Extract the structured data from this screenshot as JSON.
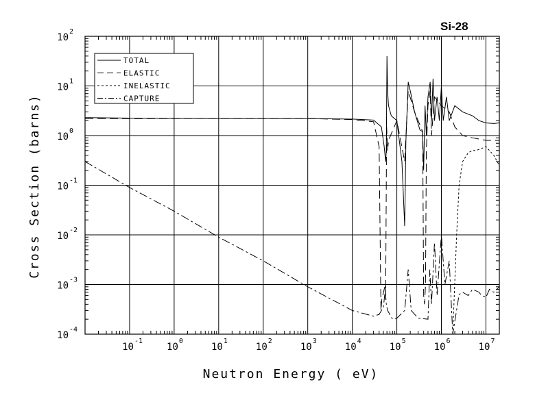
{
  "chart_data": {
    "type": "line",
    "title": "Si-28",
    "xlabel": "Neutron Energy ( eV)",
    "ylabel": "Cross Section (barns)",
    "x_scale": "log",
    "y_scale": "log",
    "xlim": [
      0.01,
      20000000
    ],
    "ylim": [
      0.0001,
      100
    ],
    "grid": true,
    "legend_position": "top-left",
    "x_ticks": [
      {
        "base": "10",
        "exp": "-1",
        "value": 0.1
      },
      {
        "base": "10",
        "exp": "0",
        "value": 1
      },
      {
        "base": "10",
        "exp": "1",
        "value": 10
      },
      {
        "base": "10",
        "exp": "2",
        "value": 100
      },
      {
        "base": "10",
        "exp": "3",
        "value": 1000
      },
      {
        "base": "10",
        "exp": "4",
        "value": 10000
      },
      {
        "base": "10",
        "exp": "5",
        "value": 100000
      },
      {
        "base": "10",
        "exp": "6",
        "value": 1000000
      },
      {
        "base": "10",
        "exp": "7",
        "value": 10000000
      }
    ],
    "y_ticks": [
      {
        "base": "10",
        "exp": "2",
        "value": 100
      },
      {
        "base": "10",
        "exp": "1",
        "value": 10
      },
      {
        "base": "10",
        "exp": "0",
        "value": 1
      },
      {
        "base": "10",
        "exp": "-1",
        "value": 0.1
      },
      {
        "base": "10",
        "exp": "-2",
        "value": 0.01
      },
      {
        "base": "10",
        "exp": "-3",
        "value": 0.001
      },
      {
        "base": "10",
        "exp": "-4",
        "value": 0.0001
      }
    ],
    "series": [
      {
        "name": "TOTAL",
        "dash": "none",
        "points": [
          [
            0.01,
            2.3
          ],
          [
            0.1,
            2.25
          ],
          [
            1,
            2.22
          ],
          [
            10,
            2.2
          ],
          [
            100,
            2.2
          ],
          [
            1000,
            2.2
          ],
          [
            10000,
            2.15
          ],
          [
            30000,
            2.05
          ],
          [
            45000,
            1.5
          ],
          [
            52000,
            0.6
          ],
          [
            56000,
            0.3
          ],
          [
            58000,
            0.5
          ],
          [
            60000,
            40
          ],
          [
            62000,
            8
          ],
          [
            65000,
            4
          ],
          [
            75000,
            2.5
          ],
          [
            100000,
            2.0
          ],
          [
            130000,
            0.3
          ],
          [
            150000,
            0.015
          ],
          [
            160000,
            0.8
          ],
          [
            180000,
            12
          ],
          [
            200000,
            8
          ],
          [
            250000,
            3
          ],
          [
            330000,
            1.3
          ],
          [
            380000,
            1.2
          ],
          [
            400000,
            0.2
          ],
          [
            430000,
            4.0
          ],
          [
            460000,
            1.0
          ],
          [
            500000,
            6
          ],
          [
            560000,
            12
          ],
          [
            600000,
            2
          ],
          [
            650000,
            14
          ],
          [
            700000,
            2
          ],
          [
            800000,
            6
          ],
          [
            900000,
            2
          ],
          [
            1000000,
            10
          ],
          [
            1100000,
            2
          ],
          [
            1300000,
            6
          ],
          [
            1500000,
            2
          ],
          [
            2000000,
            4
          ],
          [
            3000000,
            3
          ],
          [
            5000000,
            2.5
          ],
          [
            7000000,
            2
          ],
          [
            10000000,
            1.8
          ],
          [
            15000000,
            1.75
          ],
          [
            20000000,
            1.8
          ]
        ]
      },
      {
        "name": "ELASTIC",
        "dash": "12,6",
        "points": [
          [
            0.01,
            2.2
          ],
          [
            0.1,
            2.2
          ],
          [
            1,
            2.2
          ],
          [
            10,
            2.2
          ],
          [
            100,
            2.2
          ],
          [
            1000,
            2.2
          ],
          [
            10000,
            2.1
          ],
          [
            30000,
            1.9
          ],
          [
            40000,
            0.6
          ],
          [
            44000,
            0.0003
          ],
          [
            46000,
            0.0005
          ],
          [
            52000,
            0.0008
          ],
          [
            55000,
            0.001
          ],
          [
            56000,
            0.0005
          ],
          [
            59000,
            1.5
          ],
          [
            62000,
            0.5
          ],
          [
            65000,
            0.8
          ],
          [
            100000,
            2.0
          ],
          [
            150000,
            0.3
          ],
          [
            180000,
            8
          ],
          [
            250000,
            3
          ],
          [
            380000,
            1.2
          ],
          [
            400000,
            0.0006
          ],
          [
            420000,
            0.0004
          ],
          [
            440000,
            0.001
          ],
          [
            460000,
            0.5
          ],
          [
            500000,
            4
          ],
          [
            560000,
            8
          ],
          [
            600000,
            1
          ],
          [
            700000,
            6
          ],
          [
            1000000,
            4
          ],
          [
            1500000,
            3
          ],
          [
            2000000,
            1.5
          ],
          [
            3000000,
            1.0
          ],
          [
            5000000,
            0.9
          ],
          [
            10000000,
            0.8
          ],
          [
            20000000,
            0.8
          ]
        ]
      },
      {
        "name": "INELASTIC",
        "dash": "3,3",
        "points": [
          [
            1800000,
            0.0001
          ],
          [
            2200000,
            0.01
          ],
          [
            2500000,
            0.1
          ],
          [
            3000000,
            0.3
          ],
          [
            4000000,
            0.45
          ],
          [
            5000000,
            0.5
          ],
          [
            6000000,
            0.5
          ],
          [
            8000000,
            0.55
          ],
          [
            10000000,
            0.6
          ],
          [
            15000000,
            0.4
          ],
          [
            20000000,
            0.25
          ]
        ]
      },
      {
        "name": "CAPTURE",
        "dash": "12,4,3,4",
        "points": [
          [
            0.01,
            0.3
          ],
          [
            0.1,
            0.09
          ],
          [
            1,
            0.03
          ],
          [
            10,
            0.009
          ],
          [
            100,
            0.003
          ],
          [
            1000,
            0.0009
          ],
          [
            10000,
            0.0003
          ],
          [
            30000,
            0.00023
          ],
          [
            40000,
            0.00025
          ],
          [
            50000,
            0.00035
          ],
          [
            55000,
            0.0008
          ],
          [
            58000,
            0.0004
          ],
          [
            62000,
            0.0003
          ],
          [
            80000,
            0.0002
          ],
          [
            100000,
            0.00021
          ],
          [
            150000,
            0.0003
          ],
          [
            180000,
            0.002
          ],
          [
            210000,
            0.0003
          ],
          [
            300000,
            0.00021
          ],
          [
            500000,
            0.0002
          ],
          [
            550000,
            0.002
          ],
          [
            600000,
            0.0004
          ],
          [
            700000,
            0.007
          ],
          [
            800000,
            0.0006
          ],
          [
            1000000,
            0.01
          ],
          [
            1200000,
            0.001
          ],
          [
            1500000,
            0.003
          ],
          [
            1800000,
            0.0001
          ],
          [
            2500000,
            0.00063
          ],
          [
            3000000,
            0.0007
          ],
          [
            4000000,
            0.0006
          ],
          [
            5000000,
            0.0008
          ],
          [
            7000000,
            0.0007
          ],
          [
            8000000,
            0.0006
          ],
          [
            10000000,
            0.00055
          ],
          [
            12000000,
            0.0008
          ],
          [
            15000000,
            0.0007
          ],
          [
            20000000,
            0.0009
          ]
        ]
      }
    ],
    "legend": [
      "TOTAL",
      "ELASTIC",
      "INELASTIC",
      "CAPTURE"
    ]
  }
}
